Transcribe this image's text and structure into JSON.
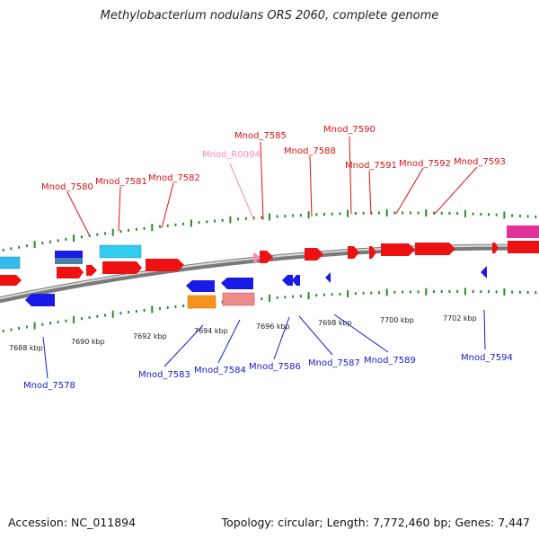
{
  "title": "Methylobacterium nodulans ORS 2060, complete genome",
  "footer": {
    "accession": "Accession: NC_011894",
    "topology": "Topology: circular; Length: 7,772,460 bp; Genes: 7,447"
  },
  "colors": {
    "forward": "#ee1111",
    "reverse": "#1a1ae6",
    "rna_label": "#ff88bb",
    "tick": "#2a8a2a",
    "backbone": "#888888"
  },
  "scale_labels": [
    "7688 kbp",
    "7690 kbp",
    "7692 kbp",
    "7694 kbp",
    "7696 kbp",
    "7698 kbp",
    "7700 kbp",
    "7702 kbp"
  ],
  "genes_top": [
    {
      "label": "Mnod_7580",
      "color": "red"
    },
    {
      "label": "Mnod_7581",
      "color": "red"
    },
    {
      "label": "Mnod_7582",
      "color": "red"
    },
    {
      "label": "Mnod_R0094",
      "color": "pink"
    },
    {
      "label": "Mnod_7585",
      "color": "red"
    },
    {
      "label": "Mnod_7588",
      "color": "red"
    },
    {
      "label": "Mnod_7590",
      "color": "red"
    },
    {
      "label": "Mnod_7591",
      "color": "red"
    },
    {
      "label": "Mnod_7592",
      "color": "red"
    },
    {
      "label": "Mnod_7593",
      "color": "red"
    }
  ],
  "genes_bottom": [
    {
      "label": "Mnod_7578",
      "color": "blue"
    },
    {
      "label": "Mnod_7583",
      "color": "blue"
    },
    {
      "label": "Mnod_7584",
      "color": "blue"
    },
    {
      "label": "Mnod_7586",
      "color": "blue"
    },
    {
      "label": "Mnod_7587",
      "color": "blue"
    },
    {
      "label": "Mnod_7589",
      "color": "blue"
    },
    {
      "label": "Mnod_7594",
      "color": "blue"
    }
  ]
}
